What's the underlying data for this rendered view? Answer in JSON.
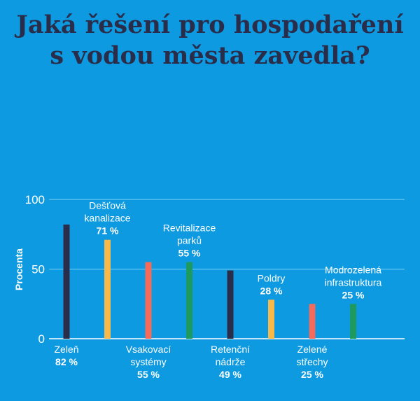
{
  "title": {
    "line1": "Jaká řešení pro hospodaření",
    "line2": "s vodou města zavedla?"
  },
  "chart_data": {
    "type": "bar",
    "title": "Jaká řešení pro hospodaření s vodou města zavedla?",
    "xlabel": "",
    "ylabel": "Procenta",
    "ylim": [
      0,
      100
    ],
    "yticks": [
      "0",
      "50",
      "100"
    ],
    "grid": true,
    "categories": [
      {
        "lines": [
          "Zeleň"
        ],
        "pct": "82 %",
        "value": 82,
        "color": "#2a2d4a",
        "label_pos": "below"
      },
      {
        "lines": [
          "Dešťová",
          "kanalizace"
        ],
        "pct": "71 %",
        "value": 71,
        "color": "#f9b84a",
        "label_pos": "above"
      },
      {
        "lines": [
          "Vsakovací",
          "systémy"
        ],
        "pct": "55 %",
        "value": 55,
        "color": "#f26b5b",
        "label_pos": "below"
      },
      {
        "lines": [
          "Revitalizace",
          "parků"
        ],
        "pct": "55 %",
        "value": 55,
        "color": "#1f9a5f",
        "label_pos": "above"
      },
      {
        "lines": [
          "Retenční",
          "nádrže"
        ],
        "pct": "49 %",
        "value": 49,
        "color": "#2a2d4a",
        "label_pos": "below"
      },
      {
        "lines": [
          "Poldry"
        ],
        "pct": "28 %",
        "value": 28,
        "color": "#f9b84a",
        "label_pos": "above"
      },
      {
        "lines": [
          "Zelené",
          "střechy"
        ],
        "pct": "25 %",
        "value": 25,
        "color": "#f26b5b",
        "label_pos": "below"
      },
      {
        "lines": [
          "Modrozelená",
          "infrastruktura"
        ],
        "pct": "25 %",
        "value": 25,
        "color": "#1f9a5f",
        "label_pos": "above"
      }
    ],
    "colors": {
      "background": "#0e9ae0",
      "title": "#2a2d4a",
      "gridline": "#7fd0f5",
      "axis": "#ffffff",
      "label": "#ffffff"
    }
  }
}
